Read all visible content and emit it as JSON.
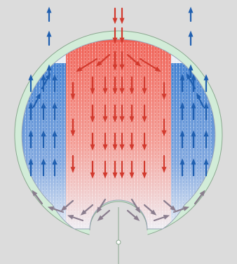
{
  "diagram": {
    "kind": "circular flow-distribution cross-section",
    "colors": {
      "background": "#dcdcdc",
      "outer_ring": "#d2ecd8",
      "ring_stroke": "#8aa88f",
      "inner_base": "#e9edf4",
      "hot": "#ef5a4e",
      "hot_light": "#f6b3ad",
      "cold": "#3f7fd0",
      "cold_light": "#a9c4ea",
      "arrow_red": "#d23a2e",
      "arrow_blue": "#1f5fb0",
      "arrow_grey": "#8a7d8e"
    },
    "icons": [
      "inlet-arrow-icon",
      "outlet-arrow-icon",
      "flow-arrow-icon",
      "center-point-icon"
    ]
  }
}
